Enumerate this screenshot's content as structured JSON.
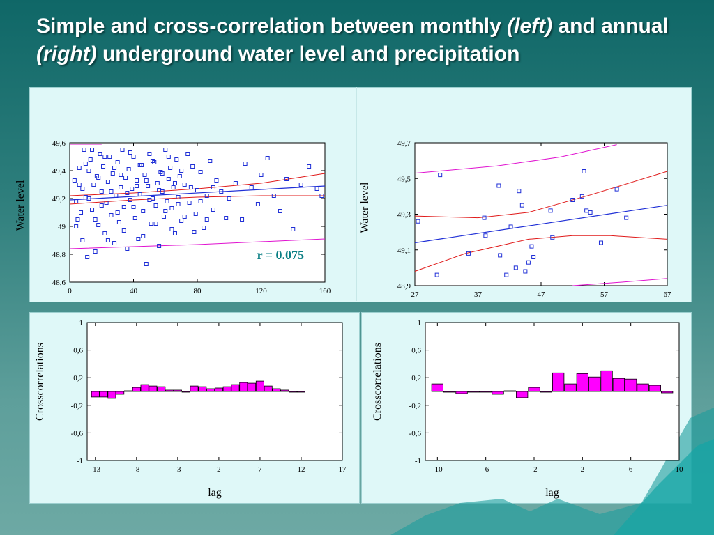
{
  "title": {
    "part1": "Simple and cross-correlation between monthly ",
    "left_word": "(left)",
    "part2": " and annual ",
    "right_word": "(right)",
    "part3": " underground water level and precipitation"
  },
  "colors": {
    "scatter_points": "#1f2fd6",
    "fit_line": "#1f2fd6",
    "confidence_band": "#e01a1a",
    "prediction_band": "#e012d0",
    "bar_fill": "#ff00ff",
    "r_label": "#0a7f84"
  },
  "chart_data": [
    {
      "type": "scatter",
      "ylabel": "Water level",
      "xlabel": "",
      "xlim": [
        0,
        160
      ],
      "ylim": [
        48.6,
        49.6
      ],
      "xticks": [
        "0",
        "40",
        "80",
        "120",
        "160"
      ],
      "yticks": [
        "48,6",
        "48,8",
        "49",
        "49,2",
        "49,4",
        "49,6"
      ],
      "annotation": "r = 0.075",
      "fit": {
        "x": [
          0,
          160
        ],
        "y": [
          49.19,
          49.29
        ]
      },
      "confidence_upper": [
        [
          0,
          49.22
        ],
        [
          40,
          49.24
        ],
        [
          80,
          49.27
        ],
        [
          120,
          49.31
        ],
        [
          160,
          49.38
        ]
      ],
      "confidence_lower": [
        [
          0,
          49.16
        ],
        [
          40,
          49.19
        ],
        [
          80,
          49.21
        ],
        [
          120,
          49.22
        ],
        [
          160,
          49.22
        ]
      ],
      "prediction_upper": [
        [
          0,
          49.59
        ],
        [
          20,
          49.59
        ]
      ],
      "prediction_lower": [
        [
          0,
          48.84
        ],
        [
          80,
          48.87
        ],
        [
          160,
          48.91
        ]
      ],
      "points": [
        [
          3,
          49.33
        ],
        [
          4,
          49.18
        ],
        [
          5,
          49.05
        ],
        [
          6,
          49.42
        ],
        [
          7,
          49.1
        ],
        [
          8,
          49.27
        ],
        [
          9,
          49.55
        ],
        [
          10,
          49.21
        ],
        [
          11,
          48.78
        ],
        [
          12,
          49.4
        ],
        [
          13,
          49.48
        ],
        [
          14,
          49.12
        ],
        [
          15,
          49.3
        ],
        [
          16,
          48.82
        ],
        [
          17,
          49.36
        ],
        [
          18,
          49.01
        ],
        [
          19,
          49.52
        ],
        [
          20,
          49.25
        ],
        [
          21,
          49.43
        ],
        [
          22,
          48.95
        ],
        [
          23,
          49.17
        ],
        [
          24,
          49.32
        ],
        [
          25,
          49.5
        ],
        [
          26,
          49.08
        ],
        [
          27,
          49.38
        ],
        [
          28,
          48.88
        ],
        [
          29,
          49.22
        ],
        [
          30,
          49.46
        ],
        [
          31,
          49.03
        ],
        [
          32,
          49.28
        ],
        [
          33,
          49.55
        ],
        [
          34,
          49.14
        ],
        [
          35,
          49.35
        ],
        [
          36,
          48.84
        ],
        [
          37,
          49.41
        ],
        [
          38,
          49.19
        ],
        [
          39,
          49.27
        ],
        [
          40,
          49.5
        ],
        [
          41,
          49.06
        ],
        [
          42,
          49.33
        ],
        [
          43,
          48.91
        ],
        [
          44,
          49.23
        ],
        [
          45,
          49.44
        ],
        [
          46,
          49.11
        ],
        [
          47,
          49.37
        ],
        [
          48,
          48.73
        ],
        [
          49,
          49.29
        ],
        [
          50,
          49.52
        ],
        [
          51,
          49.02
        ],
        [
          52,
          49.2
        ],
        [
          53,
          49.46
        ],
        [
          54,
          49.15
        ],
        [
          55,
          49.31
        ],
        [
          56,
          48.86
        ],
        [
          57,
          49.39
        ],
        [
          58,
          49.25
        ],
        [
          59,
          49.07
        ],
        [
          60,
          49.55
        ],
        [
          61,
          49.18
        ],
        [
          62,
          49.34
        ],
        [
          63,
          49.42
        ],
        [
          64,
          49.13
        ],
        [
          65,
          49.28
        ],
        [
          66,
          48.95
        ],
        [
          67,
          49.48
        ],
        [
          68,
          49.21
        ],
        [
          69,
          49.36
        ],
        [
          70,
          49.04
        ],
        [
          72,
          49.3
        ],
        [
          74,
          49.52
        ],
        [
          75,
          49.17
        ],
        [
          77,
          49.43
        ],
        [
          79,
          49.09
        ],
        [
          80,
          49.26
        ],
        [
          82,
          49.39
        ],
        [
          84,
          48.99
        ],
        [
          86,
          49.22
        ],
        [
          88,
          49.47
        ],
        [
          90,
          49.12
        ],
        [
          92,
          49.33
        ],
        [
          95,
          49.25
        ],
        [
          98,
          49.06
        ],
        [
          100,
          49.2
        ],
        [
          104,
          49.31
        ],
        [
          108,
          49.05
        ],
        [
          110,
          49.45
        ],
        [
          114,
          49.28
        ],
        [
          118,
          49.16
        ],
        [
          120,
          49.37
        ],
        [
          124,
          49.49
        ],
        [
          128,
          49.22
        ],
        [
          132,
          49.11
        ],
        [
          136,
          49.34
        ],
        [
          140,
          48.98
        ],
        [
          145,
          49.3
        ],
        [
          150,
          49.43
        ],
        [
          155,
          49.27
        ],
        [
          158,
          49.22
        ],
        [
          4,
          49.0
        ],
        [
          6,
          49.3
        ],
        [
          8,
          48.9
        ],
        [
          10,
          49.45
        ],
        [
          12,
          49.2
        ],
        [
          14,
          49.55
        ],
        [
          16,
          49.05
        ],
        [
          18,
          49.35
        ],
        [
          20,
          49.15
        ],
        [
          22,
          49.5
        ],
        [
          24,
          48.9
        ],
        [
          26,
          49.25
        ],
        [
          28,
          49.42
        ],
        [
          30,
          49.1
        ],
        [
          32,
          49.37
        ],
        [
          34,
          48.97
        ],
        [
          36,
          49.24
        ],
        [
          38,
          49.53
        ],
        [
          40,
          49.14
        ],
        [
          42,
          49.29
        ],
        [
          44,
          49.44
        ],
        [
          46,
          48.93
        ],
        [
          48,
          49.33
        ],
        [
          50,
          49.19
        ],
        [
          52,
          49.47
        ],
        [
          54,
          49.02
        ],
        [
          56,
          49.26
        ],
        [
          58,
          49.38
        ],
        [
          60,
          49.11
        ],
        [
          62,
          49.5
        ],
        [
          64,
          48.98
        ],
        [
          66,
          49.31
        ],
        [
          68,
          49.16
        ],
        [
          70,
          49.4
        ],
        [
          72,
          49.07
        ],
        [
          76,
          49.28
        ],
        [
          78,
          48.96
        ],
        [
          82,
          49.18
        ],
        [
          86,
          49.05
        ],
        [
          90,
          49.28
        ]
      ]
    },
    {
      "type": "scatter",
      "ylabel": "Water level",
      "xlabel": "",
      "xlim": [
        27,
        67
      ],
      "ylim": [
        48.9,
        49.7
      ],
      "xticks": [
        "27",
        "37",
        "47",
        "57",
        "67"
      ],
      "yticks": [
        "48,9",
        "49,1",
        "49,3",
        "49,5",
        "49,7"
      ],
      "fit": {
        "x": [
          27,
          67
        ],
        "y": [
          49.14,
          49.35
        ]
      },
      "confidence_upper": [
        [
          27,
          49.29
        ],
        [
          37,
          49.28
        ],
        [
          45,
          49.31
        ],
        [
          55,
          49.41
        ],
        [
          67,
          49.54
        ]
      ],
      "confidence_lower": [
        [
          27,
          48.98
        ],
        [
          35,
          49.08
        ],
        [
          45,
          49.16
        ],
        [
          52,
          49.18
        ],
        [
          58,
          49.18
        ],
        [
          67,
          49.16
        ]
      ],
      "prediction_upper": [
        [
          27,
          49.53
        ],
        [
          40,
          49.57
        ],
        [
          50,
          49.62
        ],
        [
          59,
          49.69
        ]
      ],
      "prediction_lower": [
        [
          52,
          48.9
        ],
        [
          60,
          48.92
        ],
        [
          67,
          48.94
        ]
      ],
      "points": [
        [
          27.5,
          49.26
        ],
        [
          30.5,
          48.96
        ],
        [
          31,
          49.52
        ],
        [
          35.5,
          49.08
        ],
        [
          38,
          49.28
        ],
        [
          38.2,
          49.18
        ],
        [
          40.5,
          49.07
        ],
        [
          40.3,
          49.46
        ],
        [
          41.5,
          48.96
        ],
        [
          42.2,
          49.23
        ],
        [
          43,
          49.0
        ],
        [
          43.5,
          49.43
        ],
        [
          44,
          49.35
        ],
        [
          44.5,
          48.98
        ],
        [
          45,
          49.03
        ],
        [
          45.5,
          49.12
        ],
        [
          45.8,
          49.06
        ],
        [
          48.5,
          49.32
        ],
        [
          48.8,
          49.17
        ],
        [
          52,
          49.38
        ],
        [
          53.5,
          49.4
        ],
        [
          53.8,
          49.54
        ],
        [
          54.2,
          49.32
        ],
        [
          54.8,
          49.31
        ],
        [
          56.5,
          49.14
        ],
        [
          59,
          49.44
        ],
        [
          60.5,
          49.28
        ]
      ]
    },
    {
      "type": "bar",
      "ylabel": "Crosscorrelations",
      "xlabel": "lag",
      "xlim": [
        -14,
        17
      ],
      "ylim": [
        -1,
        1
      ],
      "xticks": [
        "-13",
        "-8",
        "-3",
        "2",
        "7",
        "12",
        "17"
      ],
      "yticks": [
        "-1",
        "-0,6",
        "-0,2",
        "0,2",
        "0,6",
        "1"
      ],
      "lags": [
        -13,
        -12,
        -11,
        -10,
        -9,
        -8,
        -7,
        -6,
        -5,
        -4,
        -3,
        -2,
        -1,
        0,
        1,
        2,
        3,
        4,
        5,
        6,
        7,
        8,
        9,
        10,
        11,
        12
      ],
      "values": [
        -0.08,
        -0.08,
        -0.1,
        -0.04,
        0.01,
        0.06,
        0.1,
        0.08,
        0.07,
        0.02,
        0.02,
        0.0,
        0.08,
        0.07,
        0.04,
        0.05,
        0.07,
        0.1,
        0.13,
        0.12,
        0.15,
        0.08,
        0.04,
        0.02,
        0.0,
        0.0
      ]
    },
    {
      "type": "bar",
      "ylabel": "Crosscorrelations",
      "xlabel": "lag",
      "xlim": [
        -11,
        10
      ],
      "ylim": [
        -1,
        1
      ],
      "xticks": [
        "-10",
        "-6",
        "-2",
        "2",
        "6",
        "10"
      ],
      "yticks": [
        "-1",
        "-0,6",
        "-0,2",
        "0,2",
        "0,6",
        "1"
      ],
      "lags": [
        -10,
        -9,
        -8,
        -7,
        -6,
        -5,
        -4,
        -3,
        -2,
        -1,
        0,
        1,
        2,
        3,
        4,
        5,
        6,
        7,
        8,
        9
      ],
      "values": [
        0.11,
        -0.01,
        -0.03,
        0.0,
        0.0,
        -0.04,
        0.01,
        -0.09,
        0.06,
        0.0,
        0.27,
        0.11,
        0.26,
        0.21,
        0.3,
        0.19,
        0.18,
        0.11,
        0.09,
        -0.02
      ]
    }
  ]
}
